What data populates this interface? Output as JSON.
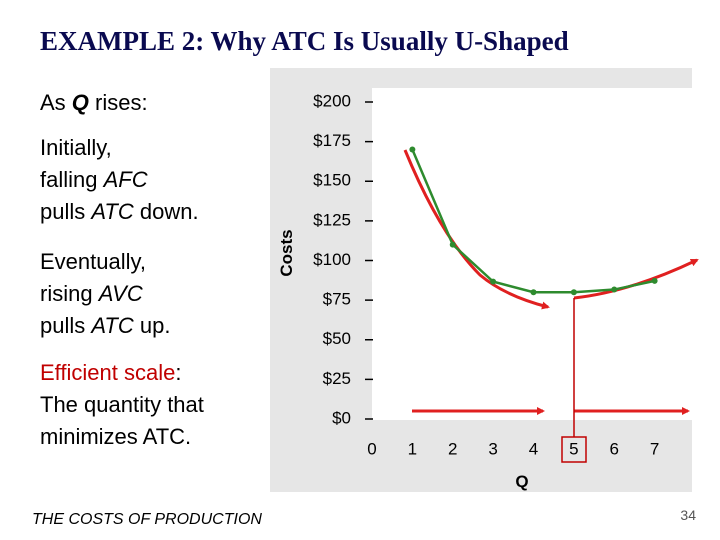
{
  "slide": {
    "title": "EXAMPLE 2:  Why ATC Is Usually U-Shaped",
    "lines": [
      [
        "As ",
        "Q",
        " rises:"
      ],
      [
        "Initially,"
      ],
      [
        "falling ",
        "AFC"
      ],
      [
        "pulls ",
        "ATC",
        " down."
      ],
      [
        "Eventually,"
      ],
      [
        "rising ",
        "AVC"
      ],
      [
        "pulls ",
        "ATC",
        " up."
      ],
      [
        "Efficient scale",
        ":"
      ],
      [
        "The quantity that"
      ],
      [
        "minimizes ATC."
      ]
    ],
    "footer": "THE COSTS OF PRODUCTION",
    "page_number": "34"
  },
  "chart_data": {
    "type": "line",
    "x_label": "Q",
    "y_label": "Costs",
    "x": [
      1,
      2,
      3,
      4,
      5,
      6,
      7
    ],
    "series": [
      {
        "name": "ATC",
        "color": "#2e8b2e",
        "values": [
          170,
          110,
          86.67,
          80,
          80,
          81.67,
          87.14
        ]
      }
    ],
    "xlim": [
      0,
      8
    ],
    "xticks": [
      0,
      1,
      2,
      3,
      4,
      5,
      6,
      7
    ],
    "ylim": [
      0,
      200
    ],
    "yticks": [
      {
        "value": 0,
        "label": "$0"
      },
      {
        "value": 25,
        "label": "$25"
      },
      {
        "value": 50,
        "label": "$50"
      },
      {
        "value": 75,
        "label": "$75"
      },
      {
        "value": 100,
        "label": "$100"
      },
      {
        "value": 125,
        "label": "$125"
      },
      {
        "value": 150,
        "label": "$150"
      },
      {
        "value": 175,
        "label": "$175"
      },
      {
        "value": 200,
        "label": "$200"
      }
    ]
  }
}
